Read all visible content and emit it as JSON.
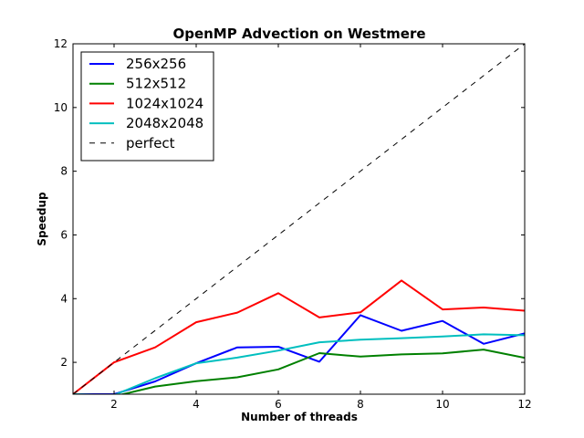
{
  "chart_data": {
    "type": "line",
    "title": "OpenMP Advection on Westmere",
    "xlabel": "Number of threads",
    "ylabel": "Speedup",
    "xlim": [
      1,
      12
    ],
    "ylim": [
      1,
      12
    ],
    "xticks": [
      2,
      4,
      6,
      8,
      10,
      12
    ],
    "yticks": [
      2,
      4,
      6,
      8,
      10,
      12
    ],
    "grid": false,
    "legend_position": "top-left",
    "x": [
      1,
      2,
      3,
      4,
      5,
      6,
      7,
      8,
      9,
      10,
      11,
      12
    ],
    "series": [
      {
        "name": "256x256",
        "color": "#0000ff",
        "style": "solid",
        "values": [
          1.0,
          1.0,
          1.4,
          1.97,
          2.47,
          2.49,
          2.02,
          3.48,
          2.99,
          3.3,
          2.58,
          2.91
        ]
      },
      {
        "name": "512x512",
        "color": "#008000",
        "style": "solid",
        "values": [
          1.0,
          0.93,
          1.24,
          1.41,
          1.53,
          1.78,
          2.29,
          2.18,
          2.25,
          2.28,
          2.4,
          2.14
        ]
      },
      {
        "name": "1024x1024",
        "color": "#ff0000",
        "style": "solid",
        "values": [
          1.0,
          2.0,
          2.47,
          3.26,
          3.56,
          4.17,
          3.41,
          3.57,
          4.57,
          3.66,
          3.72,
          3.62
        ]
      },
      {
        "name": "2048x2048",
        "color": "#00bfbf",
        "style": "solid",
        "values": [
          1.0,
          0.97,
          1.5,
          1.97,
          2.15,
          2.37,
          2.63,
          2.71,
          2.76,
          2.81,
          2.88,
          2.85
        ]
      },
      {
        "name": "perfect",
        "color": "#000000",
        "style": "dashed",
        "values": [
          1,
          2,
          3,
          4,
          5,
          6,
          7,
          8,
          9,
          10,
          11,
          12
        ]
      }
    ]
  }
}
